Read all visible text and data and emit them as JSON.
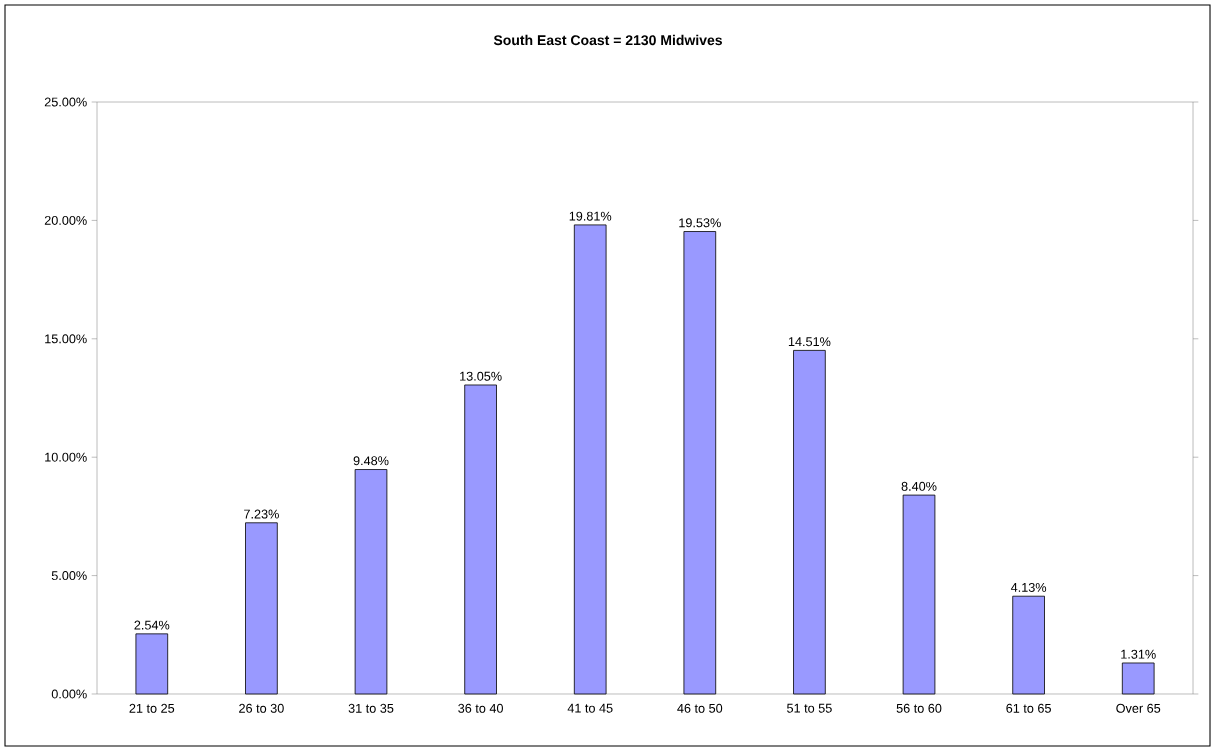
{
  "chart_data": {
    "type": "bar",
    "title": "**South East Coast = 2130 Midwives**",
    "categories": [
      "21 to 25",
      "26 to 30",
      "31 to 35",
      "36 to 40",
      "41 to 45",
      "46 to 50",
      "51 to 55",
      "56 to 60",
      "61 to 65",
      "Over 65"
    ],
    "values": [
      2.54,
      7.23,
      9.48,
      13.05,
      19.81,
      19.53,
      14.51,
      8.4,
      4.13,
      1.31
    ],
    "value_labels": [
      "2.54%",
      "7.23%",
      "9.48%",
      "13.05%",
      "19.81%",
      "19.53%",
      "14.51%",
      "8.40%",
      "4.13%",
      "1.31%"
    ],
    "color": "#9999ff",
    "ylim": [
      0,
      25
    ],
    "yticks": [
      {
        "value": 0,
        "label": "0.00%"
      },
      {
        "value": 5,
        "label": "5.00%"
      },
      {
        "value": 10,
        "label": "10.00%"
      },
      {
        "value": 15,
        "label": "15.00%"
      },
      {
        "value": 20,
        "label": "20.00%"
      },
      {
        "value": 25,
        "label": "25.00%"
      }
    ],
    "grid": false
  }
}
